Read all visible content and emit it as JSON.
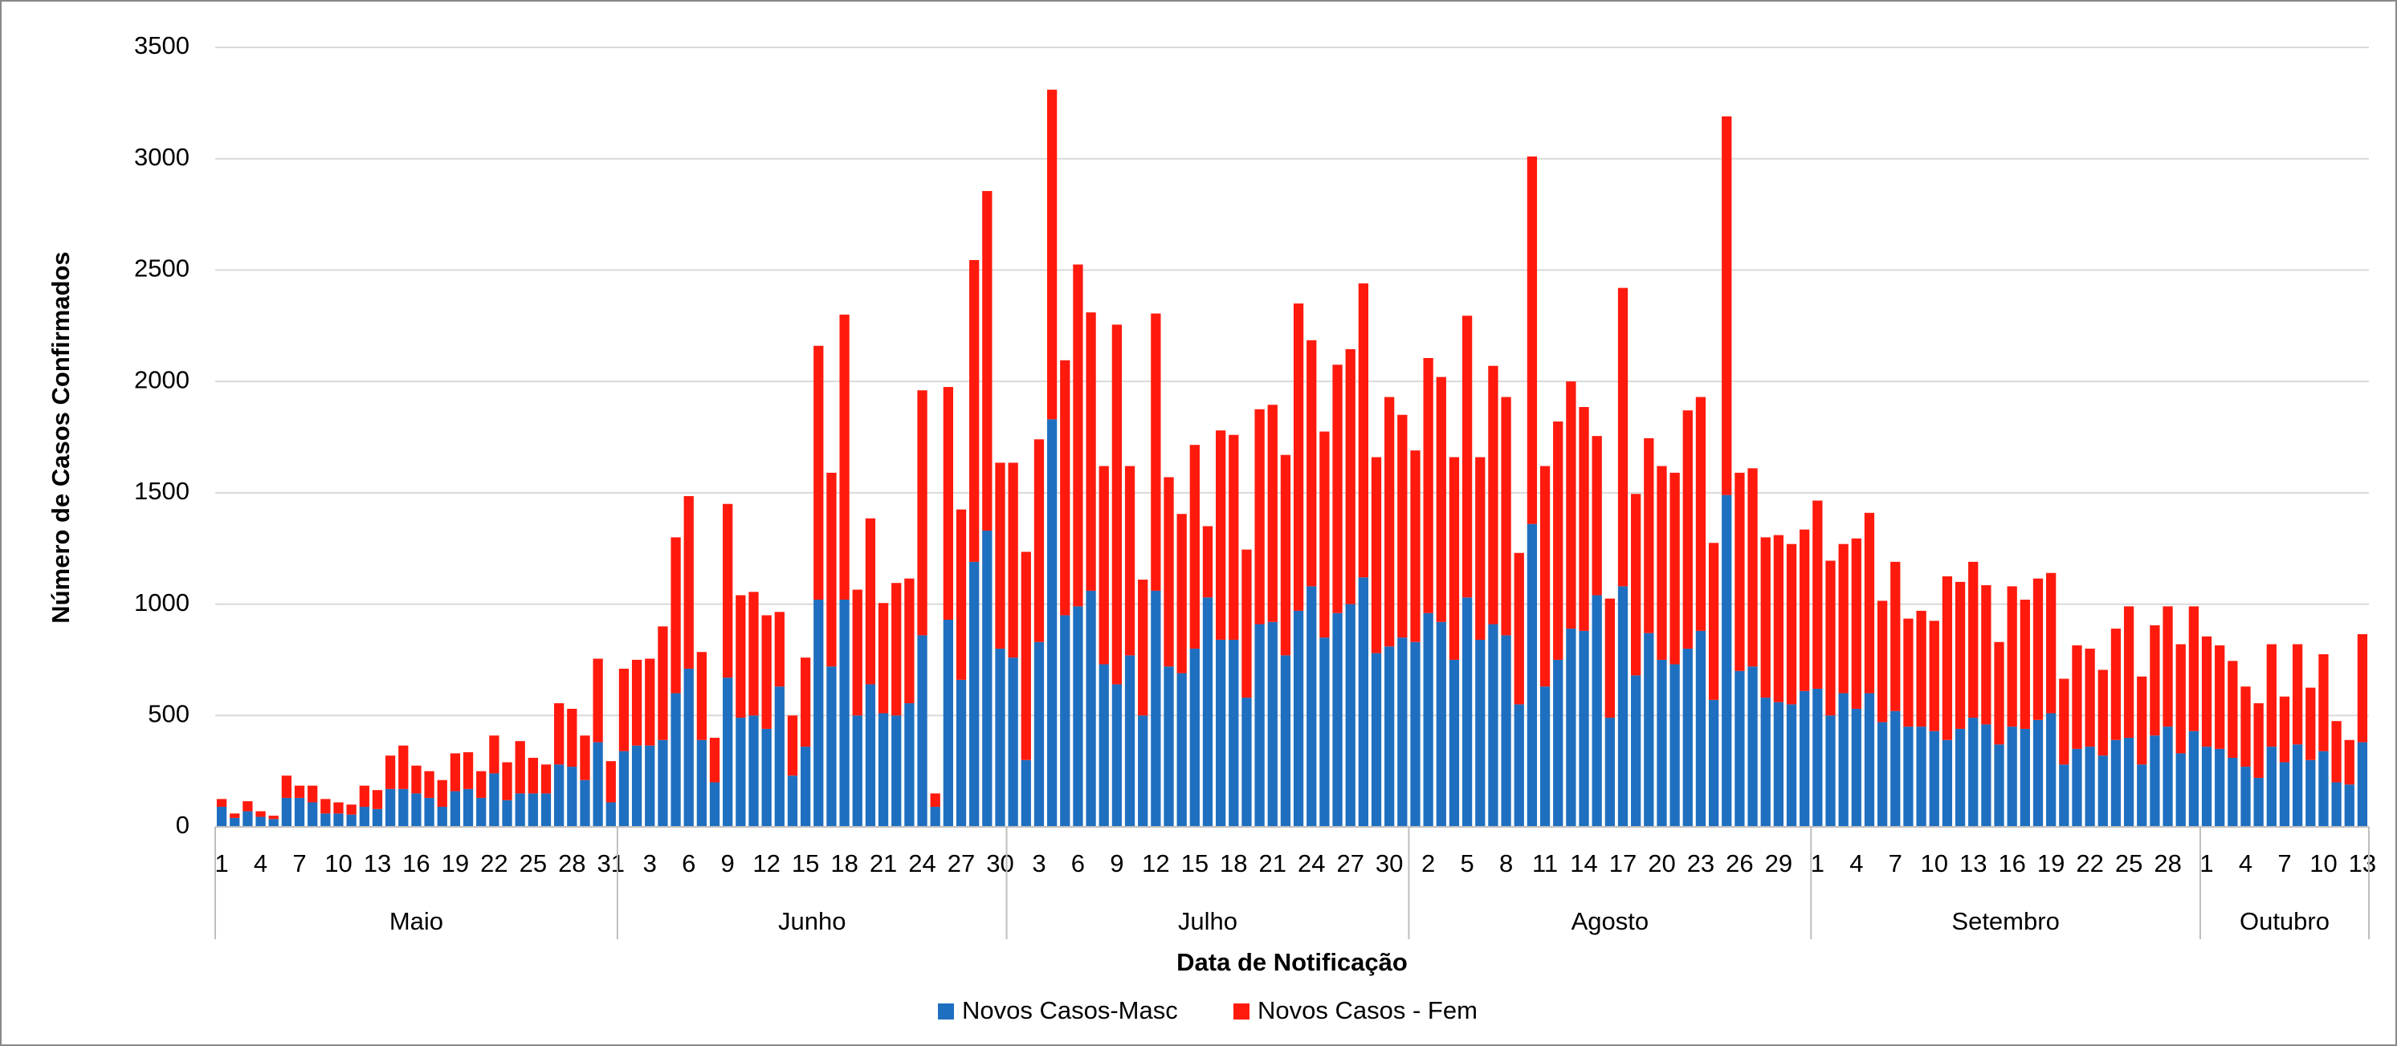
{
  "chart_data": {
    "type": "stacked-bar",
    "y_label": "Número de Casos Confirmados",
    "x_label": "Data de Notificação",
    "ylim": [
      0,
      3500
    ],
    "yticks": [
      0,
      500,
      1000,
      1500,
      2000,
      2500,
      3000,
      3500
    ],
    "grid": true,
    "legend": "bottom",
    "months": [
      {
        "name": "Maio",
        "days": [
          "1",
          null,
          null,
          "4",
          null,
          null,
          "7",
          null,
          null,
          "10",
          null,
          null,
          "13",
          null,
          null,
          "16",
          null,
          null,
          "19",
          null,
          null,
          "22",
          null,
          null,
          "25",
          null,
          null,
          "28",
          null,
          null,
          "31"
        ]
      },
      {
        "name": "Junho",
        "days": [
          null,
          null,
          "3",
          null,
          null,
          "6",
          null,
          null,
          "9",
          null,
          null,
          "12",
          null,
          null,
          "15",
          null,
          null,
          "18",
          null,
          null,
          "21",
          null,
          null,
          "24",
          null,
          null,
          "27",
          null,
          null,
          "30"
        ]
      },
      {
        "name": "Julho",
        "days": [
          null,
          null,
          "3",
          null,
          null,
          "6",
          null,
          null,
          "9",
          null,
          null,
          "12",
          null,
          null,
          "15",
          null,
          null,
          "18",
          null,
          null,
          "21",
          null,
          null,
          "24",
          null,
          null,
          "27",
          null,
          null,
          "30",
          null
        ]
      },
      {
        "name": "Agosto",
        "days": [
          null,
          "2",
          null,
          null,
          "5",
          null,
          null,
          "8",
          null,
          null,
          "11",
          null,
          null,
          "14",
          null,
          null,
          "17",
          null,
          null,
          "20",
          null,
          null,
          "23",
          null,
          null,
          "26",
          null,
          null,
          "29",
          null,
          null
        ]
      },
      {
        "name": "Setembro",
        "days": [
          "1",
          null,
          null,
          "4",
          null,
          null,
          "7",
          null,
          null,
          "10",
          null,
          null,
          "13",
          null,
          null,
          "16",
          null,
          null,
          "19",
          null,
          null,
          "22",
          null,
          null,
          "25",
          null,
          null,
          "28",
          null,
          null
        ]
      },
      {
        "name": "Outubro",
        "days": [
          "1",
          null,
          null,
          "4",
          null,
          null,
          "7",
          null,
          null,
          "10",
          null,
          null,
          "13"
        ]
      }
    ],
    "series": [
      {
        "name": "Novos Casos-Masc",
        "color": "#1f6fc0",
        "values": [
          90,
          40,
          70,
          45,
          35,
          130,
          130,
          110,
          60,
          60,
          55,
          90,
          80,
          170,
          170,
          150,
          130,
          90,
          160,
          170,
          130,
          240,
          120,
          150,
          150,
          150,
          280,
          270,
          210,
          380,
          110,
          340,
          365,
          365,
          390,
          600,
          710,
          390,
          200,
          670,
          490,
          500,
          440,
          630,
          230,
          360,
          1020,
          720,
          1020,
          500,
          640,
          510,
          500,
          555,
          860,
          90,
          930,
          660,
          1190,
          1330,
          800,
          760,
          300,
          830,
          1830,
          950,
          990,
          1060,
          730,
          640,
          770,
          500,
          1060,
          720,
          690,
          800,
          1030,
          840,
          840,
          580,
          910,
          920,
          770,
          970,
          1080,
          850,
          960,
          1000,
          1120,
          780,
          810,
          850,
          830,
          960,
          920,
          750,
          1030,
          840,
          910,
          860,
          550,
          1360,
          630,
          750,
          890,
          880,
          1040,
          490,
          1080,
          680,
          870,
          750,
          730,
          800,
          880,
          570,
          1490,
          700,
          720,
          580,
          560,
          550,
          610,
          620,
          500,
          600,
          530,
          600,
          470,
          520,
          450,
          450,
          430,
          390,
          440,
          490,
          460,
          370,
          450,
          440,
          480,
          510,
          280,
          350,
          360,
          320,
          390,
          400,
          280,
          410,
          450,
          330,
          430,
          360,
          350,
          310,
          270,
          220,
          360,
          290,
          370,
          300,
          340,
          200,
          190,
          380
        ]
      },
      {
        "name": "Novos Casos - Fem",
        "color": "#ff1a0d",
        "values": [
          35,
          20,
          45,
          25,
          15,
          100,
          55,
          75,
          65,
          50,
          45,
          95,
          85,
          150,
          195,
          125,
          120,
          120,
          170,
          165,
          120,
          170,
          170,
          235,
          160,
          130,
          275,
          260,
          200,
          375,
          185,
          370,
          385,
          390,
          510,
          700,
          775,
          395,
          200,
          780,
          550,
          555,
          510,
          335,
          270,
          400,
          1140,
          870,
          1280,
          565,
          745,
          495,
          595,
          560,
          1100,
          60,
          1045,
          765,
          1355,
          1525,
          835,
          875,
          935,
          910,
          1480,
          1145,
          1535,
          1250,
          890,
          1615,
          850,
          610,
          1245,
          850,
          715,
          915,
          320,
          940,
          920,
          665,
          965,
          975,
          900,
          1380,
          1105,
          925,
          1115,
          1145,
          1320,
          880,
          1120,
          1000,
          860,
          1145,
          1100,
          910,
          1265,
          820,
          1160,
          1070,
          680,
          1650,
          990,
          1070,
          1110,
          1005,
          715,
          535,
          1340,
          815,
          875,
          870,
          860,
          1070,
          1050,
          705,
          1700,
          890,
          890,
          720,
          750,
          720,
          725,
          845,
          695,
          670,
          765,
          810,
          545,
          670,
          485,
          520,
          495,
          735,
          660,
          700,
          625,
          460,
          630,
          580,
          635,
          630,
          385,
          465,
          440,
          385,
          500,
          590,
          395,
          495,
          540,
          490,
          560,
          495,
          465,
          435,
          360,
          335,
          460,
          295,
          450,
          325,
          435,
          275,
          200,
          485
        ]
      }
    ]
  }
}
